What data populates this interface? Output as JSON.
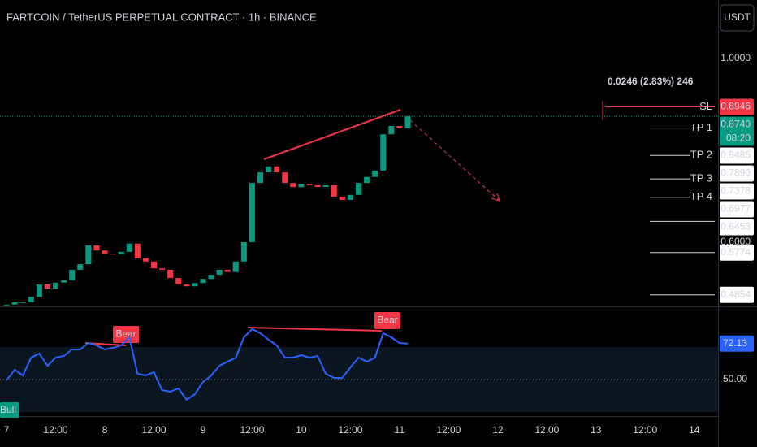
{
  "header": {
    "title": "FARTCOIN / TetherUS PERPETUAL CONTRACT · 1h · BINANCE",
    "currency_button": "USDT",
    "measurement": "0.0246 (2.83%) 246"
  },
  "chart_data": [
    {
      "type": "candlestick",
      "x": [
        0,
        2,
        4,
        6,
        8,
        10,
        12,
        14,
        16,
        18,
        20,
        22,
        24,
        26,
        28,
        30,
        32,
        34,
        36,
        38,
        40,
        42,
        44,
        46,
        48,
        50,
        52,
        54,
        56,
        58,
        60,
        62,
        64,
        66,
        68,
        70,
        72,
        74,
        76,
        78,
        80,
        82,
        84,
        86,
        88,
        90,
        92,
        94,
        96,
        98
      ],
      "values": [
        0.464,
        0.469,
        0.469,
        0.481,
        0.508,
        0.499,
        0.512,
        0.517,
        0.54,
        0.552,
        0.593,
        0.582,
        0.575,
        0.574,
        0.579,
        0.597,
        0.565,
        0.558,
        0.543,
        0.54,
        0.522,
        0.508,
        0.504,
        0.511,
        0.52,
        0.529,
        0.54,
        0.535,
        0.558,
        0.6,
        0.729,
        0.752,
        0.765,
        0.752,
        0.729,
        0.72,
        0.727,
        0.724,
        0.72,
        0.724,
        0.699,
        0.692,
        0.703,
        0.729,
        0.742,
        0.756,
        0.835,
        0.853,
        0.848,
        0.874
      ],
      "up_color": "#089981",
      "down_color": "#f23645",
      "xlim": [
        -1.6,
        173.8
      ],
      "xticks": [
        {
          "value": 0,
          "label": "7"
        },
        {
          "value": 12,
          "label": "12:00"
        },
        {
          "value": 24,
          "label": "8"
        },
        {
          "value": 36,
          "label": "12:00"
        },
        {
          "value": 48,
          "label": "9"
        },
        {
          "value": 60,
          "label": "12:00"
        },
        {
          "value": 72,
          "label": "10"
        },
        {
          "value": 84,
          "label": "12:00"
        },
        {
          "value": 96,
          "label": "11"
        },
        {
          "value": 108,
          "label": "12:00"
        },
        {
          "value": 120,
          "label": "12"
        },
        {
          "value": 132,
          "label": "12:00"
        },
        {
          "value": 144,
          "label": "13"
        },
        {
          "value": 156,
          "label": "12:00"
        },
        {
          "value": 168,
          "label": "14"
        }
      ],
      "ylim": [
        0.4602,
        1.1274
      ],
      "yticks": [
        {
          "value": 1,
          "label": "1.0000"
        },
        {
          "value": 0.6,
          "label": "0.6000"
        }
      ],
      "last_price": {
        "value": 0.874,
        "label": "0.8740",
        "countdown": "08:20"
      },
      "levels": [
        {
          "name": "SL",
          "value": 0.8946,
          "label": "0.8946",
          "color": "#f23645"
        },
        {
          "name": "TP 1",
          "value": 0.8485,
          "label": "0.8485"
        },
        {
          "name": "TP 2",
          "value": 0.789,
          "label": "0.7890"
        },
        {
          "name": "TP 3",
          "value": 0.7378,
          "label": "0.7378"
        },
        {
          "name": "TP 4",
          "value": 0.6977,
          "label": "0.6977"
        },
        {
          "value": 0.6453,
          "label": "0.6453"
        },
        {
          "value": 0.5774,
          "label": "0.5774"
        },
        {
          "value": 0.4854,
          "label": "0.4854"
        }
      ]
    },
    {
      "type": "line",
      "x": [
        0,
        2,
        4,
        6,
        8,
        10,
        12,
        14,
        16,
        18,
        20,
        22,
        24,
        26,
        28,
        30,
        32,
        34,
        36,
        38,
        40,
        42,
        44,
        46,
        48,
        50,
        52,
        54,
        56,
        58,
        60,
        62,
        64,
        66,
        68,
        70,
        72,
        74,
        76,
        78,
        80,
        82,
        84,
        86,
        88,
        90,
        92,
        94,
        96,
        98
      ],
      "values": [
        49.5,
        56,
        52.5,
        63.5,
        66,
        58.5,
        63.5,
        64.5,
        68.5,
        68.5,
        72.5,
        71,
        68.5,
        69.5,
        71,
        76,
        53.5,
        52.5,
        54.5,
        43.5,
        42.5,
        44.5,
        37.5,
        41,
        48.5,
        52.5,
        58.5,
        61,
        63.5,
        76,
        81,
        78.5,
        74.5,
        71,
        63.5,
        63.5,
        65,
        63.5,
        64.5,
        53.5,
        51,
        51,
        57.5,
        63.5,
        61,
        63.5,
        78.5,
        76,
        72.5,
        72.13
      ],
      "color": "#2962ff",
      "ylim": [
        28.5,
        93.5
      ],
      "yticks": [
        {
          "value": 50,
          "label": "50.00"
        }
      ],
      "last_value": {
        "value": 72.13,
        "label": "72.13"
      },
      "annotations": [
        "Bear",
        "Bear",
        "Bull"
      ]
    }
  ]
}
